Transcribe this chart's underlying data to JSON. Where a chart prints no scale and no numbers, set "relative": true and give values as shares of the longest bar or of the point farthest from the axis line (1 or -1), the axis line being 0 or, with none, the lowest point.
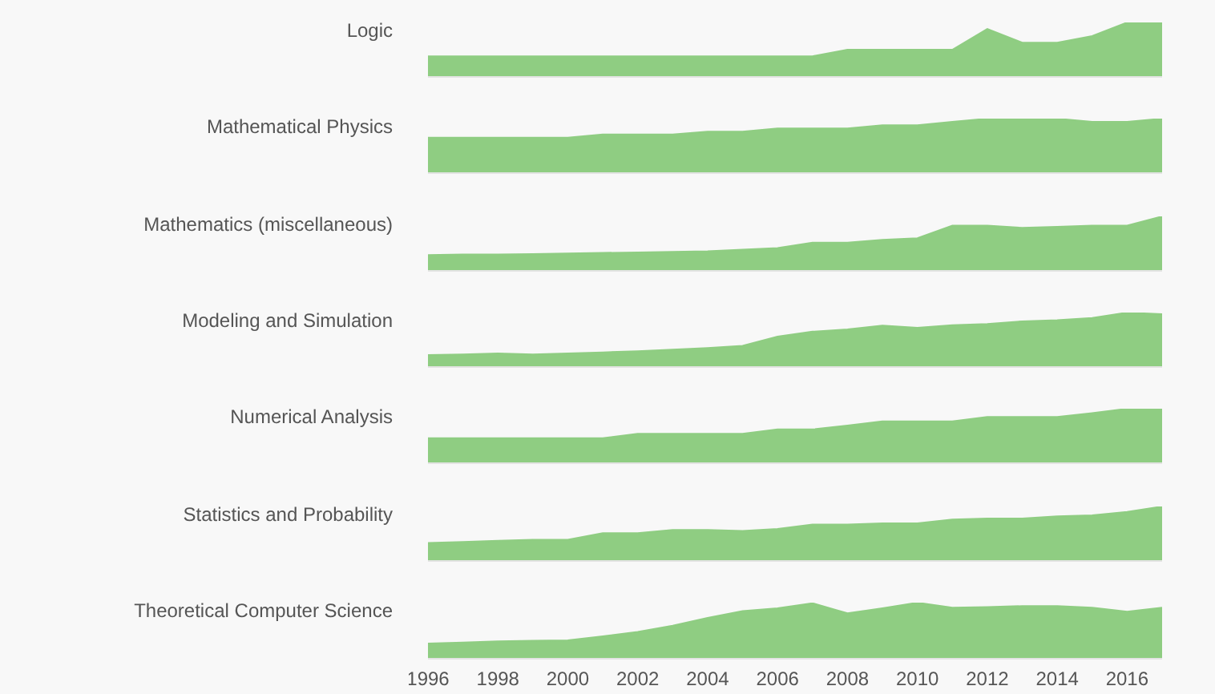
{
  "chart_data": [
    {
      "type": "area",
      "relative": true,
      "tick_labels": false,
      "x": [
        1996,
        1997,
        1998,
        1999,
        2000,
        2001,
        2002,
        2003,
        2004,
        2005,
        2006,
        2007,
        2008,
        2009,
        2010,
        2011,
        2012,
        2013,
        2014,
        2015,
        2016,
        2017
      ],
      "xlim": [
        1996,
        2017
      ],
      "xticks": [
        1996,
        1998,
        2000,
        2002,
        2004,
        2006,
        2008,
        2010,
        2012,
        2014,
        2016
      ],
      "series": [
        {
          "name": "Logic",
          "color": "#8fcd82",
          "values": [
            0.38,
            0.38,
            0.38,
            0.38,
            0.38,
            0.38,
            0.38,
            0.38,
            0.38,
            0.38,
            0.38,
            0.38,
            0.5,
            0.5,
            0.5,
            0.5,
            0.88,
            0.63,
            0.63,
            0.75,
            1,
            1
          ]
        }
      ]
    },
    {
      "type": "area",
      "relative": true,
      "tick_labels": false,
      "x": [
        1996,
        1997,
        1998,
        1999,
        2000,
        2001,
        2002,
        2003,
        2004,
        2005,
        2006,
        2007,
        2008,
        2009,
        2010,
        2011,
        2012,
        2013,
        2014,
        2015,
        2016,
        2017
      ],
      "xlim": [
        1996,
        2017
      ],
      "xticks": [
        1996,
        1998,
        2000,
        2002,
        2004,
        2006,
        2008,
        2010,
        2012,
        2014,
        2016
      ],
      "series": [
        {
          "name": "Mathematical Physics",
          "color": "#8fcd82",
          "values": [
            0.65,
            0.65,
            0.65,
            0.65,
            0.65,
            0.71,
            0.71,
            0.71,
            0.76,
            0.76,
            0.82,
            0.82,
            0.82,
            0.88,
            0.88,
            0.94,
            1,
            1,
            1,
            0.94,
            0.94,
            1
          ]
        }
      ]
    },
    {
      "type": "area",
      "relative": true,
      "tick_labels": false,
      "x": [
        1996,
        1997,
        1998,
        1999,
        2000,
        2001,
        2002,
        2003,
        2004,
        2005,
        2006,
        2007,
        2008,
        2009,
        2010,
        2011,
        2012,
        2013,
        2014,
        2015,
        2016,
        2017
      ],
      "xlim": [
        1996,
        2017
      ],
      "xticks": [
        1996,
        1998,
        2000,
        2002,
        2004,
        2006,
        2008,
        2010,
        2012,
        2014,
        2016
      ],
      "series": [
        {
          "name": "Mathematics (miscellaneous)",
          "color": "#8fcd82",
          "values": [
            0.29,
            0.3,
            0.3,
            0.31,
            0.32,
            0.33,
            0.34,
            0.35,
            0.36,
            0.39,
            0.42,
            0.52,
            0.52,
            0.57,
            0.6,
            0.83,
            0.83,
            0.79,
            0.81,
            0.83,
            0.83,
            1
          ]
        }
      ]
    },
    {
      "type": "area",
      "relative": true,
      "tick_labels": false,
      "x": [
        1996,
        1997,
        1998,
        1999,
        2000,
        2001,
        2002,
        2003,
        2004,
        2005,
        2006,
        2007,
        2008,
        2009,
        2010,
        2011,
        2012,
        2013,
        2014,
        2015,
        2016,
        2017
      ],
      "xlim": [
        1996,
        2017
      ],
      "xticks": [
        1996,
        1998,
        2000,
        2002,
        2004,
        2006,
        2008,
        2010,
        2012,
        2014,
        2016
      ],
      "series": [
        {
          "name": "Modeling and Simulation",
          "color": "#8fcd82",
          "values": [
            0.22,
            0.23,
            0.25,
            0.23,
            0.25,
            0.27,
            0.29,
            0.32,
            0.35,
            0.39,
            0.56,
            0.65,
            0.69,
            0.76,
            0.72,
            0.77,
            0.79,
            0.84,
            0.86,
            0.9,
            1,
            0.97
          ]
        }
      ]
    },
    {
      "type": "area",
      "relative": true,
      "tick_labels": false,
      "x": [
        1996,
        1997,
        1998,
        1999,
        2000,
        2001,
        2002,
        2003,
        2004,
        2005,
        2006,
        2007,
        2008,
        2009,
        2010,
        2011,
        2012,
        2013,
        2014,
        2015,
        2016,
        2017
      ],
      "xlim": [
        1996,
        2017
      ],
      "xticks": [
        1996,
        1998,
        2000,
        2002,
        2004,
        2006,
        2008,
        2010,
        2012,
        2014,
        2016
      ],
      "series": [
        {
          "name": "Numerical Analysis",
          "color": "#8fcd82",
          "values": [
            0.46,
            0.46,
            0.46,
            0.46,
            0.46,
            0.46,
            0.54,
            0.54,
            0.54,
            0.54,
            0.62,
            0.62,
            0.69,
            0.77,
            0.77,
            0.77,
            0.85,
            0.85,
            0.85,
            0.92,
            1,
            1
          ]
        }
      ]
    },
    {
      "type": "area",
      "relative": true,
      "tick_labels": false,
      "x": [
        1996,
        1997,
        1998,
        1999,
        2000,
        2001,
        2002,
        2003,
        2004,
        2005,
        2006,
        2007,
        2008,
        2009,
        2010,
        2011,
        2012,
        2013,
        2014,
        2015,
        2016,
        2017
      ],
      "xlim": [
        1996,
        2017
      ],
      "xticks": [
        1996,
        1998,
        2000,
        2002,
        2004,
        2006,
        2008,
        2010,
        2012,
        2014,
        2016
      ],
      "series": [
        {
          "name": "Statistics and Probability",
          "color": "#8fcd82",
          "values": [
            0.33,
            0.35,
            0.37,
            0.39,
            0.39,
            0.51,
            0.51,
            0.57,
            0.57,
            0.55,
            0.59,
            0.67,
            0.67,
            0.69,
            0.69,
            0.76,
            0.78,
            0.78,
            0.82,
            0.84,
            0.9,
            1
          ]
        }
      ]
    },
    {
      "type": "area",
      "relative": true,
      "tick_labels": "x",
      "x": [
        1996,
        1997,
        1998,
        1999,
        2000,
        2001,
        2002,
        2003,
        2004,
        2005,
        2006,
        2007,
        2008,
        2009,
        2010,
        2011,
        2012,
        2013,
        2014,
        2015,
        2016,
        2017
      ],
      "xlim": [
        1996,
        2017
      ],
      "xticks": [
        1996,
        1998,
        2000,
        2002,
        2004,
        2006,
        2008,
        2010,
        2012,
        2014,
        2016
      ],
      "series": [
        {
          "name": "Theoretical Computer Science",
          "color": "#8fcd82",
          "values": [
            0.27,
            0.29,
            0.31,
            0.32,
            0.33,
            0.4,
            0.48,
            0.59,
            0.73,
            0.85,
            0.9,
            0.99,
            0.81,
            0.9,
            1,
            0.91,
            0.92,
            0.94,
            0.94,
            0.91,
            0.84,
            0.91
          ]
        }
      ]
    }
  ]
}
